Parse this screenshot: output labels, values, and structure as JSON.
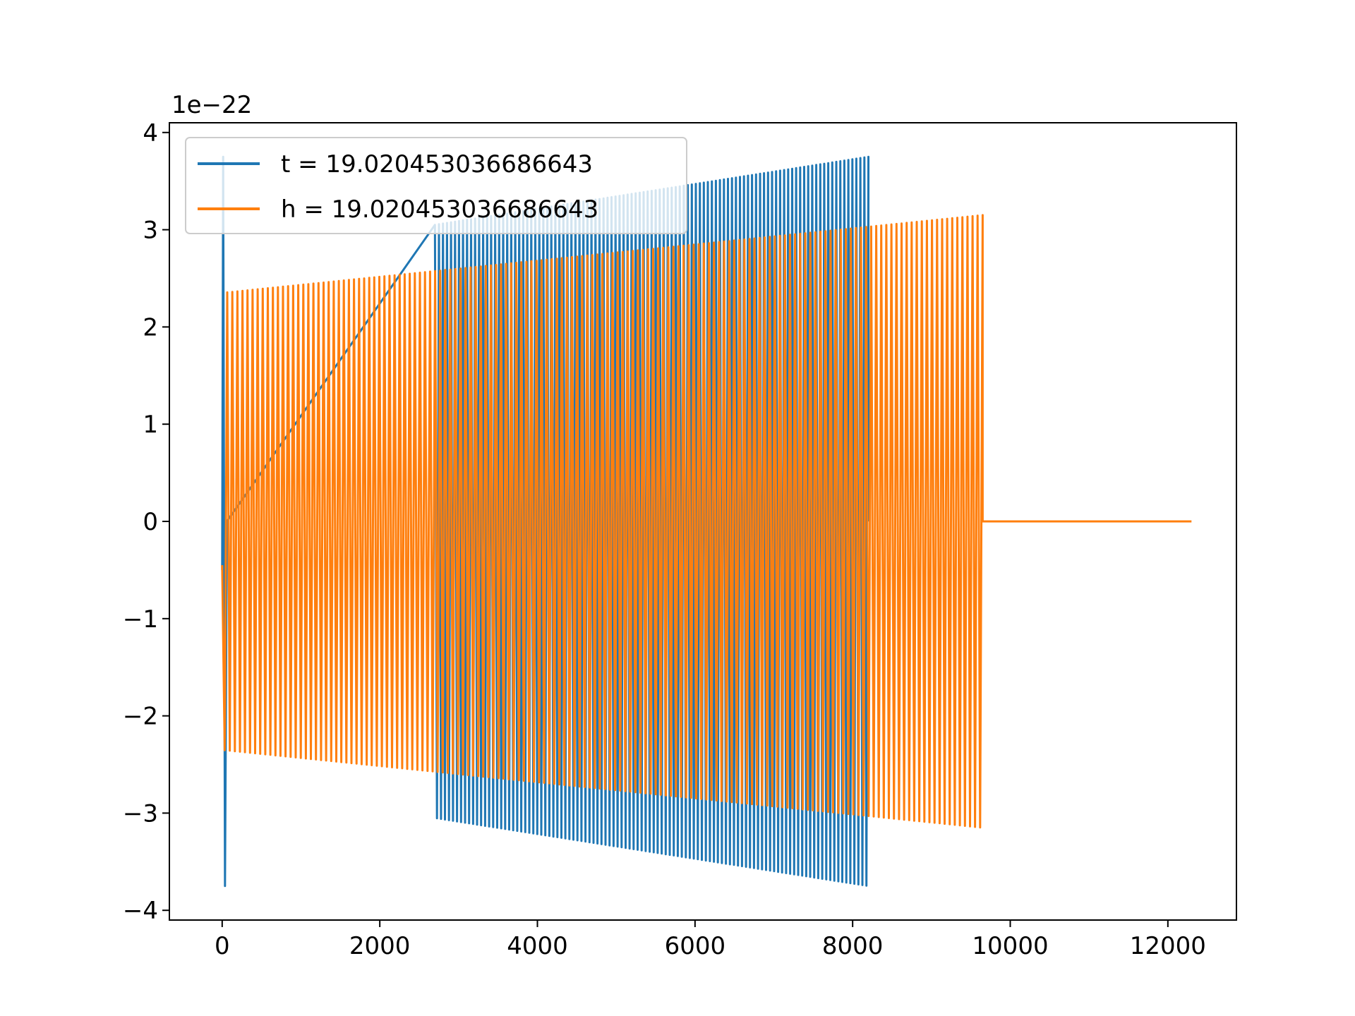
{
  "chart_data": {
    "type": "line",
    "offset_label": "1e−22",
    "xlim": [
      -670,
      12870
    ],
    "ylim": [
      -4.1,
      4.1
    ],
    "x_ticks": [
      0,
      2000,
      4000,
      6000,
      8000,
      10000,
      12000
    ],
    "x_tick_labels": [
      "0",
      "2000",
      "4000",
      "6000",
      "8000",
      "10000",
      "12000"
    ],
    "y_ticks": [
      -4,
      -3,
      -2,
      -1,
      0,
      1,
      2,
      3,
      4
    ],
    "y_tick_labels": [
      "−4",
      "−3",
      "−2",
      "−1",
      "0",
      "1",
      "2",
      "3",
      "4"
    ],
    "grid": false,
    "legend_position": "top-left",
    "series": [
      {
        "name": "t = 19.020453036686643",
        "color": "#1f77b4",
        "start_x": 0,
        "end_x": 8200,
        "initial_spike_amplitude": 3.75,
        "gap_start_x": 60,
        "gap_end_x": 2700,
        "amplitude_start": 3.05,
        "amplitude_end": 3.75,
        "cycles": 108
      },
      {
        "name": "h = 19.020453036686643",
        "color": "#ff7f0e",
        "start_x": 0,
        "oscillation_end_x": 9650,
        "flat_end_x": 12300,
        "amplitude_start": 2.35,
        "amplitude_end": 3.15,
        "cycles": 150
      }
    ]
  }
}
